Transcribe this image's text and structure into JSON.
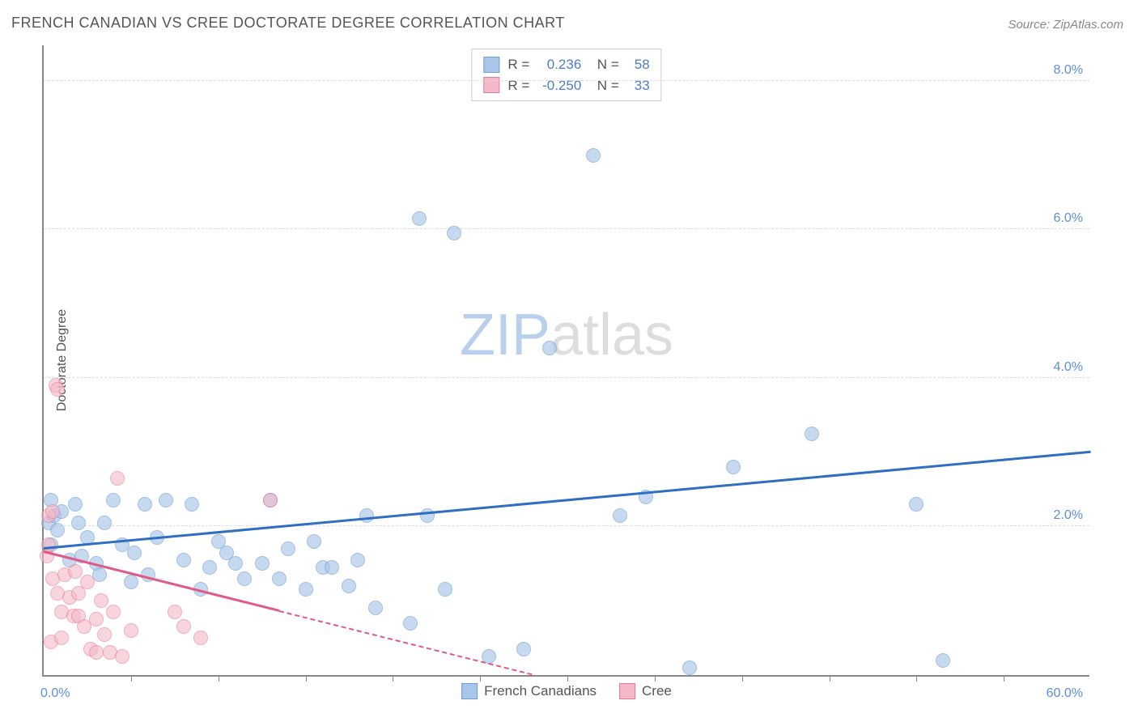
{
  "title": "FRENCH CANADIAN VS CREE DOCTORATE DEGREE CORRELATION CHART",
  "source": "Source: ZipAtlas.com",
  "ylabel": "Doctorate Degree",
  "watermark_a": "ZIP",
  "watermark_b": "atlas",
  "chart": {
    "type": "scatter",
    "xlim": [
      0,
      60
    ],
    "ylim": [
      0,
      8.5
    ],
    "x_tick_labels": {
      "left": "0.0%",
      "right": "60.0%"
    },
    "y_ticks": [
      {
        "v": 2.0,
        "label": "2.0%"
      },
      {
        "v": 4.0,
        "label": "4.0%"
      },
      {
        "v": 6.0,
        "label": "6.0%"
      },
      {
        "v": 8.0,
        "label": "8.0%"
      }
    ],
    "x_minor_ticks": [
      5,
      10,
      15,
      20,
      25,
      30,
      35,
      40,
      45,
      50,
      55
    ],
    "tick_label_color": "#5b8fd6",
    "background_color": "#ffffff",
    "grid_color": "#dddddd",
    "series": [
      {
        "name": "French Canadians",
        "fill": "#a9c6e8",
        "stroke": "#6f9fd8",
        "trend_color": "#2f6fc1",
        "marker_size": 18,
        "alpha": 0.65,
        "R": "0.236",
        "N": "58",
        "trend": {
          "x1": 0,
          "y1": 1.7,
          "x2": 60,
          "y2": 3.0,
          "dashed_after_x": null
        },
        "points": [
          [
            0.3,
            2.05
          ],
          [
            0.6,
            2.15
          ],
          [
            0.8,
            1.95
          ],
          [
            0.4,
            2.35
          ],
          [
            1.0,
            2.2
          ],
          [
            1.5,
            1.55
          ],
          [
            1.8,
            2.3
          ],
          [
            2.0,
            2.05
          ],
          [
            2.5,
            1.85
          ],
          [
            3.0,
            1.5
          ],
          [
            3.2,
            1.35
          ],
          [
            3.5,
            2.05
          ],
          [
            4.0,
            2.35
          ],
          [
            4.5,
            1.75
          ],
          [
            5.0,
            1.25
          ],
          [
            5.2,
            1.65
          ],
          [
            5.8,
            2.3
          ],
          [
            6.5,
            1.85
          ],
          [
            7.0,
            2.35
          ],
          [
            8.0,
            1.55
          ],
          [
            8.5,
            2.3
          ],
          [
            9.0,
            1.15
          ],
          [
            9.5,
            1.45
          ],
          [
            10.0,
            1.8
          ],
          [
            10.5,
            1.65
          ],
          [
            11.0,
            1.5
          ],
          [
            11.5,
            1.3
          ],
          [
            12.5,
            1.5
          ],
          [
            13.0,
            2.35
          ],
          [
            14.0,
            1.7
          ],
          [
            15.0,
            1.15
          ],
          [
            15.5,
            1.8
          ],
          [
            16.0,
            1.45
          ],
          [
            16.5,
            1.45
          ],
          [
            17.5,
            1.2
          ],
          [
            18.0,
            1.55
          ],
          [
            18.5,
            2.15
          ],
          [
            19.0,
            0.9
          ],
          [
            21.0,
            0.7
          ],
          [
            21.5,
            6.15
          ],
          [
            22.0,
            2.15
          ],
          [
            23.0,
            1.15
          ],
          [
            23.5,
            5.95
          ],
          [
            25.5,
            0.25
          ],
          [
            27.5,
            0.35
          ],
          [
            29.0,
            4.4
          ],
          [
            31.5,
            7.0
          ],
          [
            33.0,
            2.15
          ],
          [
            34.5,
            2.4
          ],
          [
            37.0,
            0.1
          ],
          [
            39.5,
            2.8
          ],
          [
            44.0,
            3.25
          ],
          [
            50.0,
            2.3
          ],
          [
            51.5,
            0.2
          ],
          [
            0.4,
            1.75
          ],
          [
            2.2,
            1.6
          ],
          [
            6.0,
            1.35
          ],
          [
            13.5,
            1.3
          ]
        ]
      },
      {
        "name": "Cree",
        "fill": "#f5b8c8",
        "stroke": "#e77a9b",
        "trend_color": "#e05a84",
        "marker_size": 18,
        "alpha": 0.6,
        "R": "-0.250",
        "N": "33",
        "trend": {
          "x1": 0,
          "y1": 1.65,
          "x2": 28,
          "y2": 0.0,
          "dashed_after_x": 13.5
        },
        "points": [
          [
            0.2,
            1.6
          ],
          [
            0.3,
            1.75
          ],
          [
            0.3,
            2.15
          ],
          [
            0.4,
            0.45
          ],
          [
            0.5,
            1.3
          ],
          [
            0.5,
            2.2
          ],
          [
            0.7,
            3.9
          ],
          [
            0.8,
            3.85
          ],
          [
            0.8,
            1.1
          ],
          [
            1.0,
            0.85
          ],
          [
            1.0,
            0.5
          ],
          [
            1.2,
            1.35
          ],
          [
            1.5,
            1.05
          ],
          [
            1.7,
            0.8
          ],
          [
            1.8,
            1.4
          ],
          [
            2.0,
            0.8
          ],
          [
            2.0,
            1.1
          ],
          [
            2.3,
            0.65
          ],
          [
            2.5,
            1.25
          ],
          [
            2.7,
            0.35
          ],
          [
            3.0,
            0.75
          ],
          [
            3.0,
            0.3
          ],
          [
            3.3,
            1.0
          ],
          [
            3.5,
            0.55
          ],
          [
            3.8,
            0.3
          ],
          [
            4.0,
            0.85
          ],
          [
            4.2,
            2.65
          ],
          [
            4.5,
            0.25
          ],
          [
            5.0,
            0.6
          ],
          [
            7.5,
            0.85
          ],
          [
            8.0,
            0.65
          ],
          [
            9.0,
            0.5
          ],
          [
            13.0,
            2.35
          ]
        ]
      }
    ],
    "stats_box": {
      "rows": [
        {
          "swatch_fill": "#a9c6e8",
          "swatch_stroke": "#6f9fd8",
          "R_label": "R =",
          "R": "0.236",
          "N_label": "N =",
          "N": "58"
        },
        {
          "swatch_fill": "#f5b8c8",
          "swatch_stroke": "#e77a9b",
          "R_label": "R =",
          "R": "-0.250",
          "N_label": "N =",
          "N": "33"
        }
      ]
    },
    "bottom_legend": [
      {
        "label": "French Canadians",
        "fill": "#a9c6e8",
        "stroke": "#6f9fd8"
      },
      {
        "label": "Cree",
        "fill": "#f5b8c8",
        "stroke": "#e77a9b"
      }
    ]
  }
}
